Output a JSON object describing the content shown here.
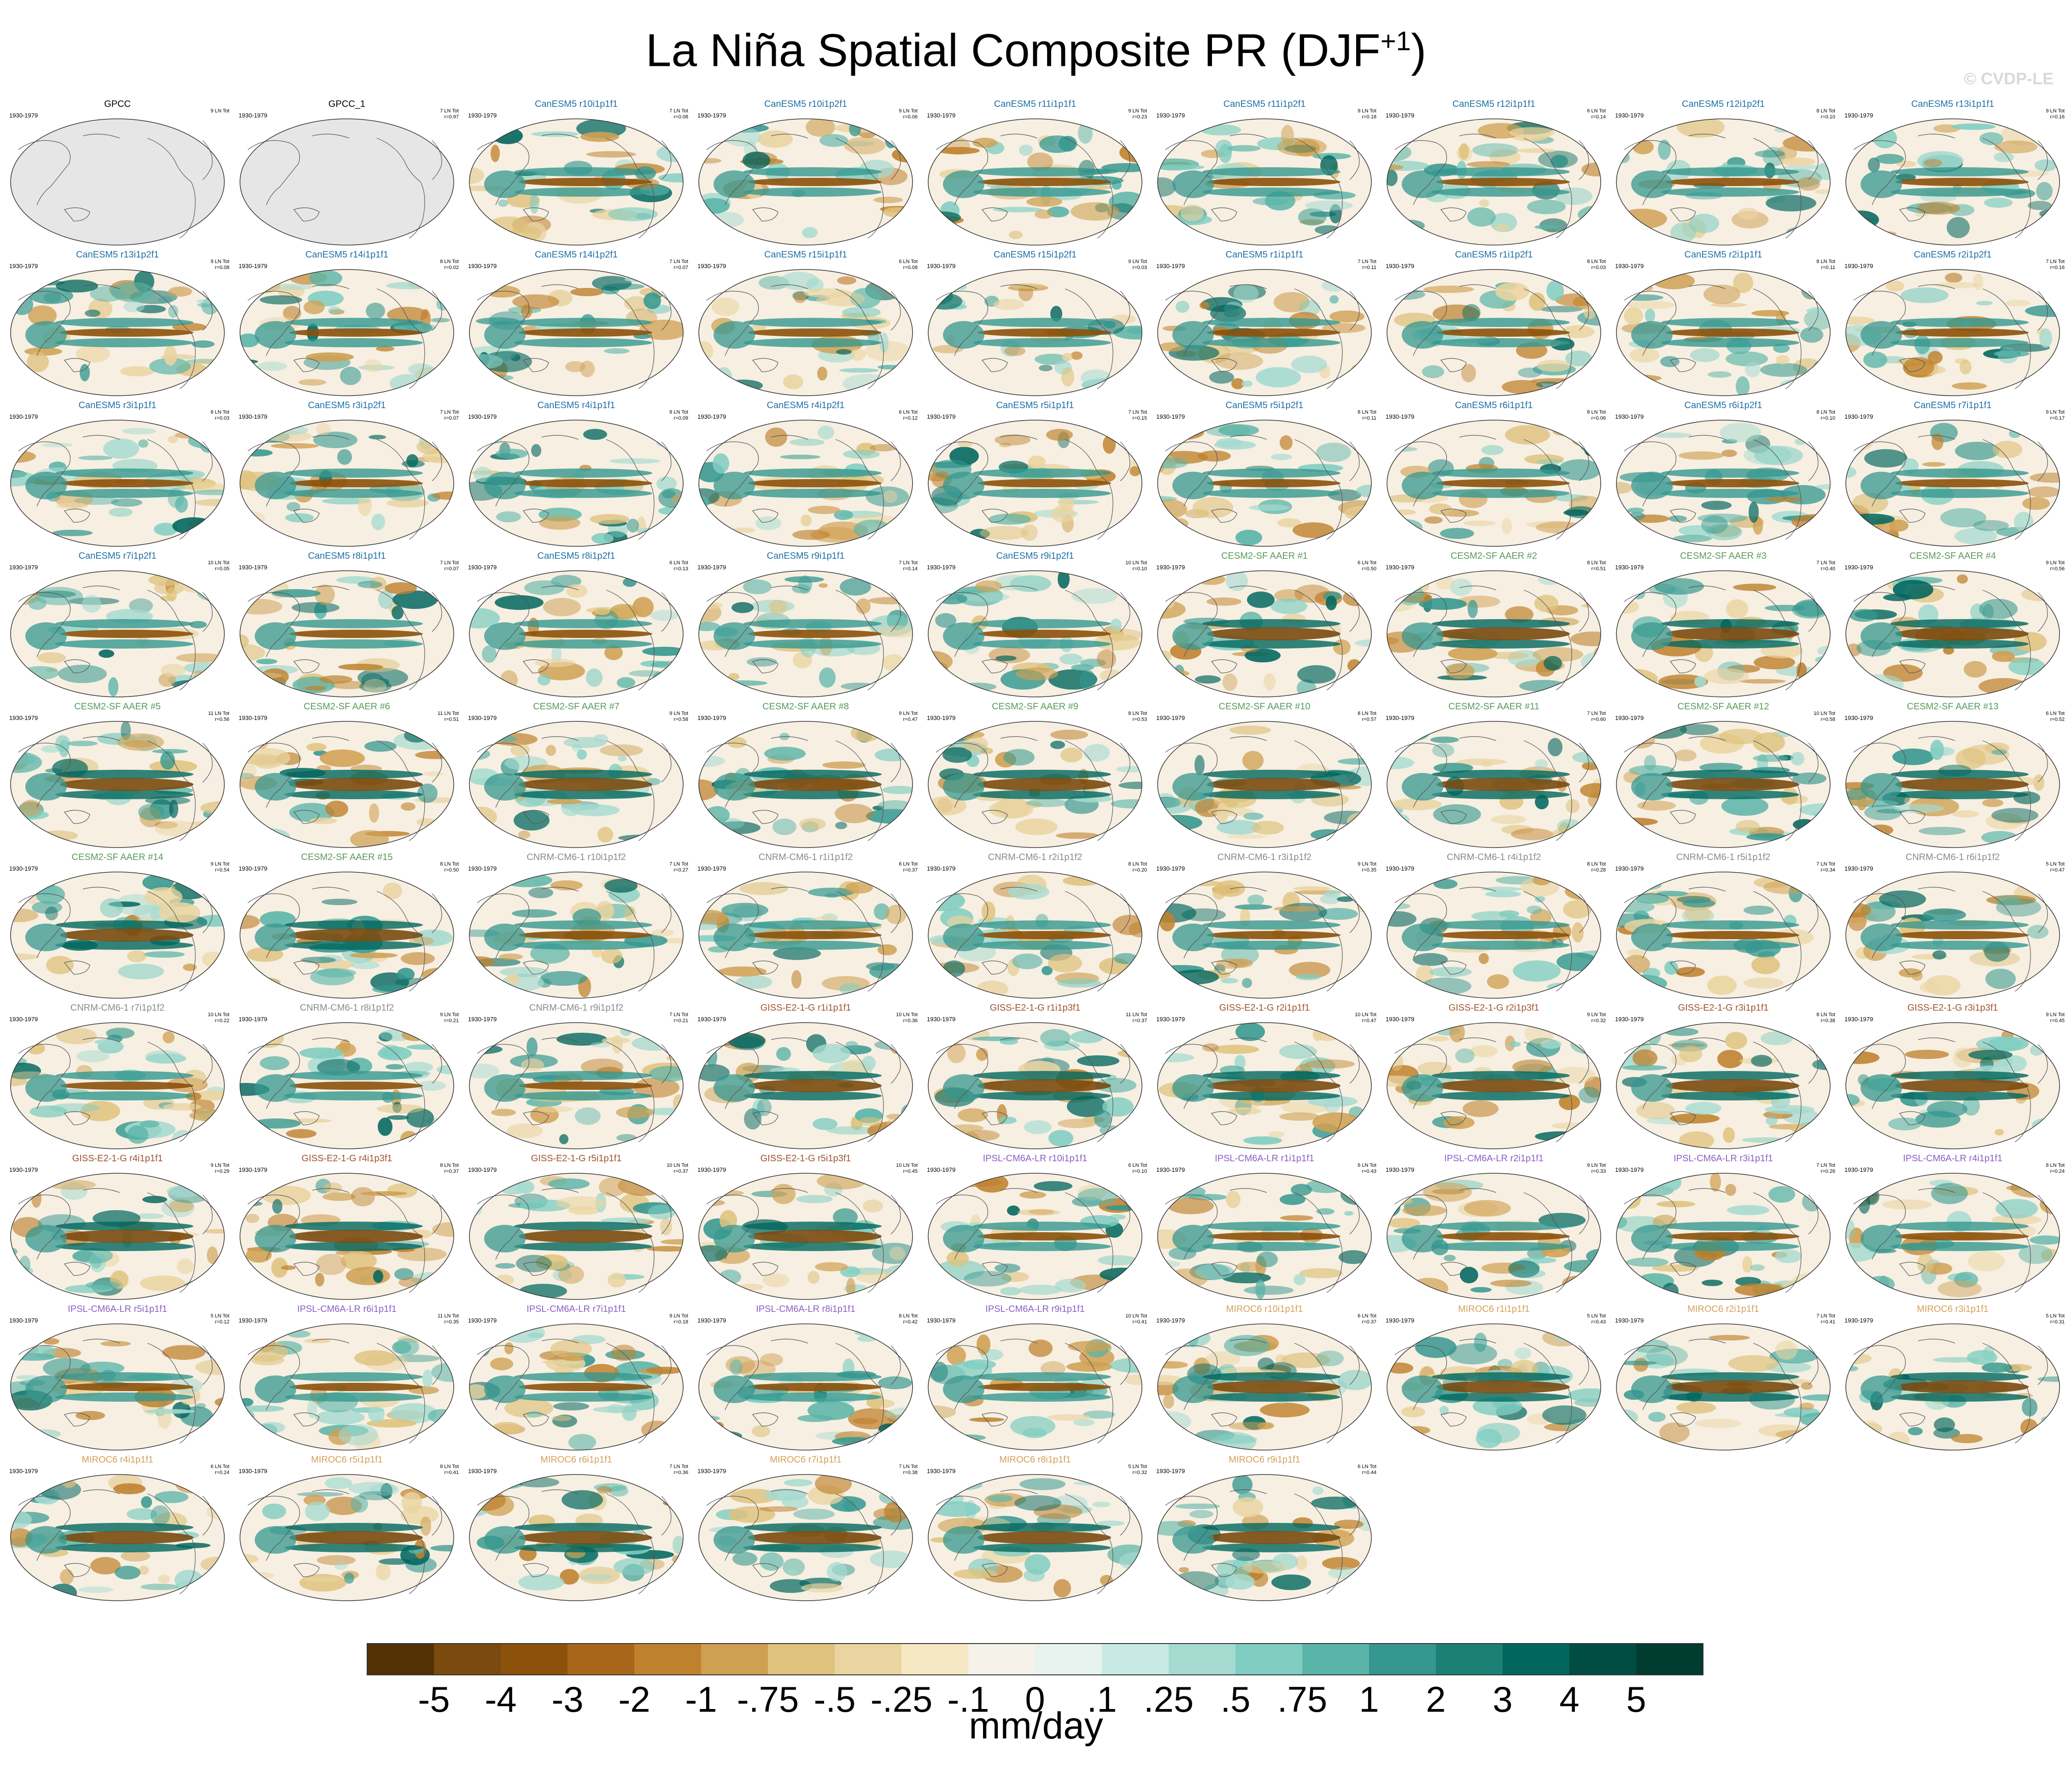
{
  "title": "La Niña Spatial Composite PR (DJF",
  "title_sup": "+1",
  "title_close": ")",
  "watermark": "© CVDP-LE",
  "colors": {
    "canesm5": "#1f6fa6",
    "cesm2": "#5a9a5a",
    "cnrm": "#8a8a8a",
    "giss": "#a0522d",
    "ipsl": "#8a5fc4",
    "miroc6": "#d4a05a",
    "obs": "#000000"
  },
  "panels": [
    {
      "title": "GPCC",
      "years": "1930-1979",
      "count": "9 LN Tot",
      "r": "",
      "family": "obs"
    },
    {
      "title": "GPCC_1",
      "years": "1930-1979",
      "count": "7 LN Tot",
      "r": "r=0.97",
      "family": "obs"
    },
    {
      "title": "CanESM5 r10i1p1f1",
      "years": "1930-1979",
      "count": "7 LN Tot",
      "r": "r=0.08",
      "family": "canesm5"
    },
    {
      "title": "CanESM5 r10i1p2f1",
      "years": "1930-1979",
      "count": "9 LN Tot",
      "r": "r=0.06",
      "family": "canesm5"
    },
    {
      "title": "CanESM5 r11i1p1f1",
      "years": "1930-1979",
      "count": "9 LN Tot",
      "r": "r=0.23",
      "family": "canesm5"
    },
    {
      "title": "CanESM5 r11i1p2f1",
      "years": "1930-1979",
      "count": "9 LN Tot",
      "r": "r=0.18",
      "family": "canesm5"
    },
    {
      "title": "CanESM5 r12i1p1f1",
      "years": "1930-1979",
      "count": "6 LN Tot",
      "r": "r=0.14",
      "family": "canesm5"
    },
    {
      "title": "CanESM5 r12i1p2f1",
      "years": "1930-1979",
      "count": "8 LN Tot",
      "r": "r=0.10",
      "family": "canesm5"
    },
    {
      "title": "CanESM5 r13i1p1f1",
      "years": "1930-1979",
      "count": "9 LN Tot",
      "r": "r=0.16",
      "family": "canesm5"
    },
    {
      "title": "CanESM5 r13i1p2f1",
      "years": "1930-1979",
      "count": "9 LN Tot",
      "r": "r=0.08",
      "family": "canesm5"
    },
    {
      "title": "CanESM5 r14i1p1f1",
      "years": "1930-1979",
      "count": "8 LN Tot",
      "r": "r=0.02",
      "family": "canesm5"
    },
    {
      "title": "CanESM5 r14i1p2f1",
      "years": "1930-1979",
      "count": "7 LN Tot",
      "r": "r=0.07",
      "family": "canesm5"
    },
    {
      "title": "CanESM5 r15i1p1f1",
      "years": "1930-1979",
      "count": "6 LN Tot",
      "r": "r=0.08",
      "family": "canesm5"
    },
    {
      "title": "CanESM5 r15i1p2f1",
      "years": "1930-1979",
      "count": "9 LN Tot",
      "r": "r=0.03",
      "family": "canesm5"
    },
    {
      "title": "CanESM5 r1i1p1f1",
      "years": "1930-1979",
      "count": "7 LN Tot",
      "r": "r=0.11",
      "family": "canesm5"
    },
    {
      "title": "CanESM5 r1i1p2f1",
      "years": "1930-1979",
      "count": "8 LN Tot",
      "r": "r=0.03",
      "family": "canesm5"
    },
    {
      "title": "CanESM5 r2i1p1f1",
      "years": "1930-1979",
      "count": "8 LN Tot",
      "r": "r=0.11",
      "family": "canesm5"
    },
    {
      "title": "CanESM5 r2i1p2f1",
      "years": "1930-1979",
      "count": "7 LN Tot",
      "r": "r=0.16",
      "family": "canesm5"
    },
    {
      "title": "CanESM5 r3i1p1f1",
      "years": "1930-1979",
      "count": "8 LN Tot",
      "r": "r=0.03",
      "family": "canesm5"
    },
    {
      "title": "CanESM5 r3i1p2f1",
      "years": "1930-1979",
      "count": "7 LN Tot",
      "r": "r=0.07",
      "family": "canesm5"
    },
    {
      "title": "CanESM5 r4i1p1f1",
      "years": "1930-1979",
      "count": "8 LN Tot",
      "r": "r=0.09",
      "family": "canesm5"
    },
    {
      "title": "CanESM5 r4i1p2f1",
      "years": "1930-1979",
      "count": "6 LN Tot",
      "r": "r=0.12",
      "family": "canesm5"
    },
    {
      "title": "CanESM5 r5i1p1f1",
      "years": "1930-1979",
      "count": "7 LN Tot",
      "r": "r=0.15",
      "family": "canesm5"
    },
    {
      "title": "CanESM5 r5i1p2f1",
      "years": "1930-1979",
      "count": "8 LN Tot",
      "r": "r=0.11",
      "family": "canesm5"
    },
    {
      "title": "CanESM5 r6i1p1f1",
      "years": "1930-1979",
      "count": "8 LN Tot",
      "r": "r=0.06",
      "family": "canesm5"
    },
    {
      "title": "CanESM5 r6i1p2f1",
      "years": "1930-1979",
      "count": "8 LN Tot",
      "r": "r=0.10",
      "family": "canesm5"
    },
    {
      "title": "CanESM5 r7i1p1f1",
      "years": "1930-1979",
      "count": "9 LN Tot",
      "r": "r=0.17",
      "family": "canesm5"
    },
    {
      "title": "CanESM5 r7i1p2f1",
      "years": "1930-1979",
      "count": "10 LN Tot",
      "r": "r=0.05",
      "family": "canesm5"
    },
    {
      "title": "CanESM5 r8i1p1f1",
      "years": "1930-1979",
      "count": "7 LN Tot",
      "r": "r=0.07",
      "family": "canesm5"
    },
    {
      "title": "CanESM5 r8i1p2f1",
      "years": "1930-1979",
      "count": "6 LN Tot",
      "r": "r=0.13",
      "family": "canesm5"
    },
    {
      "title": "CanESM5 r9i1p1f1",
      "years": "1930-1979",
      "count": "7 LN Tot",
      "r": "r=0.14",
      "family": "canesm5"
    },
    {
      "title": "CanESM5 r9i1p2f1",
      "years": "1930-1979",
      "count": "10 LN Tot",
      "r": "r=0.10",
      "family": "canesm5"
    },
    {
      "title": "CESM2-SF AAER #1",
      "years": "1930-1979",
      "count": "6 LN Tot",
      "r": "r=0.50",
      "family": "cesm2"
    },
    {
      "title": "CESM2-SF AAER #2",
      "years": "1930-1979",
      "count": "8 LN Tot",
      "r": "r=0.51",
      "family": "cesm2"
    },
    {
      "title": "CESM2-SF AAER #3",
      "years": "1930-1979",
      "count": "7 LN Tot",
      "r": "r=0.40",
      "family": "cesm2"
    },
    {
      "title": "CESM2-SF AAER #4",
      "years": "1930-1979",
      "count": "9 LN Tot",
      "r": "r=0.56",
      "family": "cesm2"
    },
    {
      "title": "CESM2-SF AAER #5",
      "years": "1930-1979",
      "count": "11 LN Tot",
      "r": "r=0.56",
      "family": "cesm2"
    },
    {
      "title": "CESM2-SF AAER #6",
      "years": "1930-1979",
      "count": "11 LN Tot",
      "r": "r=0.51",
      "family": "cesm2"
    },
    {
      "title": "CESM2-SF AAER #7",
      "years": "1930-1979",
      "count": "9 LN Tot",
      "r": "r=0.58",
      "family": "cesm2"
    },
    {
      "title": "CESM2-SF AAER #8",
      "years": "1930-1979",
      "count": "9 LN Tot",
      "r": "r=0.47",
      "family": "cesm2"
    },
    {
      "title": "CESM2-SF AAER #9",
      "years": "1930-1979",
      "count": "8 LN Tot",
      "r": "r=0.53",
      "family": "cesm2"
    },
    {
      "title": "CESM2-SF AAER #10",
      "years": "1930-1979",
      "count": "8 LN Tot",
      "r": "r=0.57",
      "family": "cesm2"
    },
    {
      "title": "CESM2-SF AAER #11",
      "years": "1930-1979",
      "count": "7 LN Tot",
      "r": "r=0.60",
      "family": "cesm2"
    },
    {
      "title": "CESM2-SF AAER #12",
      "years": "1930-1979",
      "count": "10 LN Tot",
      "r": "r=0.58",
      "family": "cesm2"
    },
    {
      "title": "CESM2-SF AAER #13",
      "years": "1930-1979",
      "count": "6 LN Tot",
      "r": "r=0.52",
      "family": "cesm2"
    },
    {
      "title": "CESM2-SF AAER #14",
      "years": "1930-1979",
      "count": "9 LN Tot",
      "r": "r=0.54",
      "family": "cesm2"
    },
    {
      "title": "CESM2-SF AAER #15",
      "years": "1930-1979",
      "count": "8 LN Tot",
      "r": "r=0.50",
      "family": "cesm2"
    },
    {
      "title": "CNRM-CM6-1 r10i1p1f2",
      "years": "1930-1979",
      "count": "7 LN Tot",
      "r": "r=0.27",
      "family": "cnrm"
    },
    {
      "title": "CNRM-CM6-1 r1i1p1f2",
      "years": "1930-1979",
      "count": "6 LN Tot",
      "r": "r=0.37",
      "family": "cnrm"
    },
    {
      "title": "CNRM-CM6-1 r2i1p1f2",
      "years": "1930-1979",
      "count": "8 LN Tot",
      "r": "r=0.20",
      "family": "cnrm"
    },
    {
      "title": "CNRM-CM6-1 r3i1p1f2",
      "years": "1930-1979",
      "count": "9 LN Tot",
      "r": "r=0.35",
      "family": "cnrm"
    },
    {
      "title": "CNRM-CM6-1 r4i1p1f2",
      "years": "1930-1979",
      "count": "8 LN Tot",
      "r": "r=0.28",
      "family": "cnrm"
    },
    {
      "title": "CNRM-CM6-1 r5i1p1f2",
      "years": "1930-1979",
      "count": "7 LN Tot",
      "r": "r=0.34",
      "family": "cnrm"
    },
    {
      "title": "CNRM-CM6-1 r6i1p1f2",
      "years": "1930-1979",
      "count": "5 LN Tot",
      "r": "r=0.47",
      "family": "cnrm"
    },
    {
      "title": "CNRM-CM6-1 r7i1p1f2",
      "years": "1930-1979",
      "count": "10 LN Tot",
      "r": "r=0.22",
      "family": "cnrm"
    },
    {
      "title": "CNRM-CM6-1 r8i1p1f2",
      "years": "1930-1979",
      "count": "9 LN Tot",
      "r": "r=0.21",
      "family": "cnrm"
    },
    {
      "title": "CNRM-CM6-1 r9i1p1f2",
      "years": "1930-1979",
      "count": "7 LN Tot",
      "r": "r=0.21",
      "family": "cnrm"
    },
    {
      "title": "GISS-E2-1-G r1i1p1f1",
      "years": "1930-1979",
      "count": "10 LN Tot",
      "r": "r=0.36",
      "family": "giss"
    },
    {
      "title": "GISS-E2-1-G r1i1p3f1",
      "years": "1930-1979",
      "count": "11 LN Tot",
      "r": "r=0.37",
      "family": "giss"
    },
    {
      "title": "GISS-E2-1-G r2i1p1f1",
      "years": "1930-1979",
      "count": "10 LN Tot",
      "r": "r=0.47",
      "family": "giss"
    },
    {
      "title": "GISS-E2-1-G r2i1p3f1",
      "years": "1930-1979",
      "count": "9 LN Tot",
      "r": "r=0.32",
      "family": "giss"
    },
    {
      "title": "GISS-E2-1-G r3i1p1f1",
      "years": "1930-1979",
      "count": "8 LN Tot",
      "r": "r=0.38",
      "family": "giss"
    },
    {
      "title": "GISS-E2-1-G r3i1p3f1",
      "years": "1930-1979",
      "count": "9 LN Tot",
      "r": "r=0.45",
      "family": "giss"
    },
    {
      "title": "GISS-E2-1-G r4i1p1f1",
      "years": "1930-1979",
      "count": "9 LN Tot",
      "r": "r=0.29",
      "family": "giss"
    },
    {
      "title": "GISS-E2-1-G r4i1p3f1",
      "years": "1930-1979",
      "count": "8 LN Tot",
      "r": "r=0.37",
      "family": "giss"
    },
    {
      "title": "GISS-E2-1-G r5i1p1f1",
      "years": "1930-1979",
      "count": "10 LN Tot",
      "r": "r=0.37",
      "family": "giss"
    },
    {
      "title": "GISS-E2-1-G r5i1p3f1",
      "years": "1930-1979",
      "count": "10 LN Tot",
      "r": "r=0.45",
      "family": "giss"
    },
    {
      "title": "IPSL-CM6A-LR r10i1p1f1",
      "years": "1930-1979",
      "count": "6 LN Tot",
      "r": "r=0.10",
      "family": "ipsl"
    },
    {
      "title": "IPSL-CM6A-LR r1i1p1f1",
      "years": "1930-1979",
      "count": "6 LN Tot",
      "r": "r=0.43",
      "family": "ipsl"
    },
    {
      "title": "IPSL-CM6A-LR r2i1p1f1",
      "years": "1930-1979",
      "count": "9 LN Tot",
      "r": "r=0.33",
      "family": "ipsl"
    },
    {
      "title": "IPSL-CM6A-LR r3i1p1f1",
      "years": "1930-1979",
      "count": "7 LN Tot",
      "r": "r=0.26",
      "family": "ipsl"
    },
    {
      "title": "IPSL-CM6A-LR r4i1p1f1",
      "years": "1930-1979",
      "count": "8 LN Tot",
      "r": "r=0.24",
      "family": "ipsl"
    },
    {
      "title": "IPSL-CM6A-LR r5i1p1f1",
      "years": "1930-1979",
      "count": "5 LN Tot",
      "r": "r=0.12",
      "family": "ipsl"
    },
    {
      "title": "IPSL-CM6A-LR r6i1p1f1",
      "years": "1930-1979",
      "count": "11 LN Tot",
      "r": "r=0.35",
      "family": "ipsl"
    },
    {
      "title": "IPSL-CM6A-LR r7i1p1f1",
      "years": "1930-1979",
      "count": "9 LN Tot",
      "r": "r=0.18",
      "family": "ipsl"
    },
    {
      "title": "IPSL-CM6A-LR r8i1p1f1",
      "years": "1930-1979",
      "count": "8 LN Tot",
      "r": "r=0.42",
      "family": "ipsl"
    },
    {
      "title": "IPSL-CM6A-LR r9i1p1f1",
      "years": "1930-1979",
      "count": "10 LN Tot",
      "r": "r=0.41",
      "family": "ipsl"
    },
    {
      "title": "MIROC6 r10i1p1f1",
      "years": "1930-1979",
      "count": "6 LN Tot",
      "r": "r=0.37",
      "family": "miroc6"
    },
    {
      "title": "MIROC6 r1i1p1f1",
      "years": "1930-1979",
      "count": "5 LN Tot",
      "r": "r=0.43",
      "family": "miroc6"
    },
    {
      "title": "MIROC6 r2i1p1f1",
      "years": "1930-1979",
      "count": "7 LN Tot",
      "r": "r=0.41",
      "family": "miroc6"
    },
    {
      "title": "MIROC6 r3i1p1f1",
      "years": "1930-1979",
      "count": "5 LN Tot",
      "r": "r=0.31",
      "family": "miroc6"
    },
    {
      "title": "MIROC6 r4i1p1f1",
      "years": "1930-1979",
      "count": "6 LN Tot",
      "r": "r=0.24",
      "family": "miroc6"
    },
    {
      "title": "MIROC6 r5i1p1f1",
      "years": "1930-1979",
      "count": "8 LN Tot",
      "r": "r=0.41",
      "family": "miroc6"
    },
    {
      "title": "MIROC6 r6i1p1f1",
      "years": "1930-1979",
      "count": "7 LN Tot",
      "r": "r=0.36",
      "family": "miroc6"
    },
    {
      "title": "MIROC6 r7i1p1f1",
      "years": "1930-1979",
      "count": "7 LN Tot",
      "r": "r=0.38",
      "family": "miroc6"
    },
    {
      "title": "MIROC6 r8i1p1f1",
      "years": "1930-1979",
      "count": "5 LN Tot",
      "r": "r=0.32",
      "family": "miroc6"
    },
    {
      "title": "MIROC6 r9i1p1f1",
      "years": "1930-1979",
      "count": "6 LN Tot",
      "r": "r=0.44",
      "family": "miroc6"
    }
  ],
  "colorbar": {
    "units": "mm/day",
    "labels": [
      "-5",
      "-4",
      "-3",
      "-2",
      "-1",
      "-.75",
      "-.5",
      "-.25",
      "-.1",
      "0",
      ".1",
      ".25",
      ".5",
      ".75",
      "1",
      "2",
      "3",
      "4",
      "5"
    ],
    "colors": [
      "#543005",
      "#7a4a0f",
      "#8c510a",
      "#a8661b",
      "#bf812d",
      "#cfa052",
      "#dfc27d",
      "#ead4a0",
      "#f6e8c3",
      "#f5f2ea",
      "#e8f2ef",
      "#c7eae5",
      "#a4dad0",
      "#80cdc1",
      "#5ab4a8",
      "#35978f",
      "#1d8075",
      "#01665e",
      "#014d44",
      "#003c30"
    ]
  }
}
